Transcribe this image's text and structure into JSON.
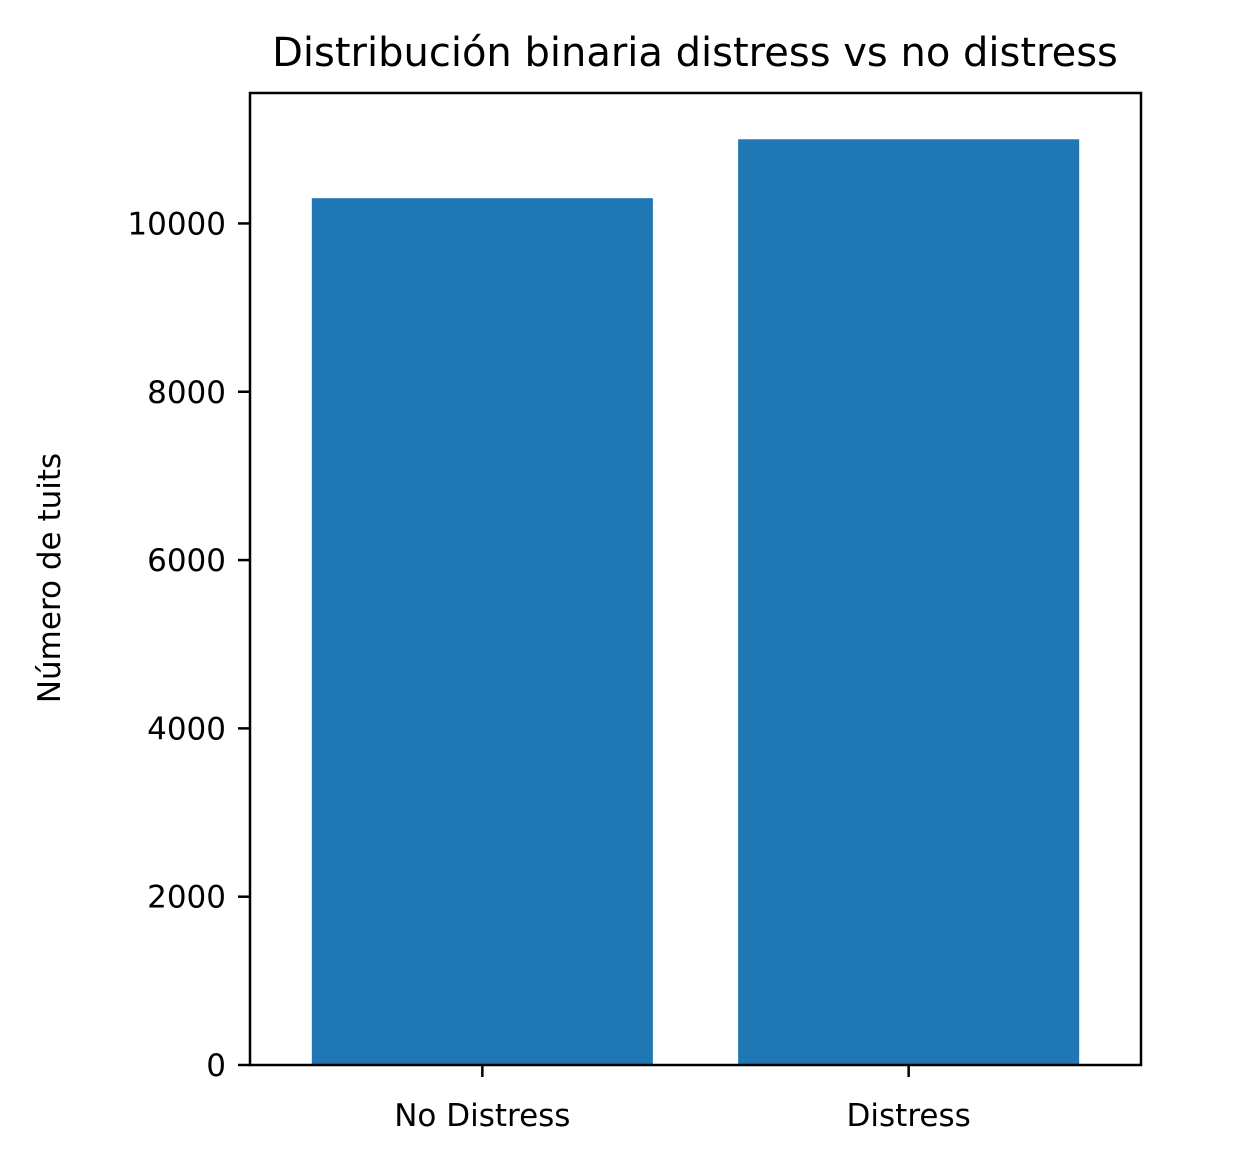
{
  "chart_data": {
    "type": "bar",
    "title": "Distribución binaria distress vs no distress",
    "xlabel": "",
    "ylabel": "Número de tuits",
    "categories": [
      "No Distress",
      "Distress"
    ],
    "values": [
      10300,
      11000
    ],
    "ylim": [
      0,
      11550
    ],
    "yticks": [
      0,
      2000,
      4000,
      6000,
      8000,
      10000
    ],
    "ytick_labels": [
      "0",
      "2000",
      "4000",
      "6000",
      "8000",
      "10000"
    ],
    "bar_color": "#1f77b4",
    "grid": false,
    "legend": "none"
  }
}
